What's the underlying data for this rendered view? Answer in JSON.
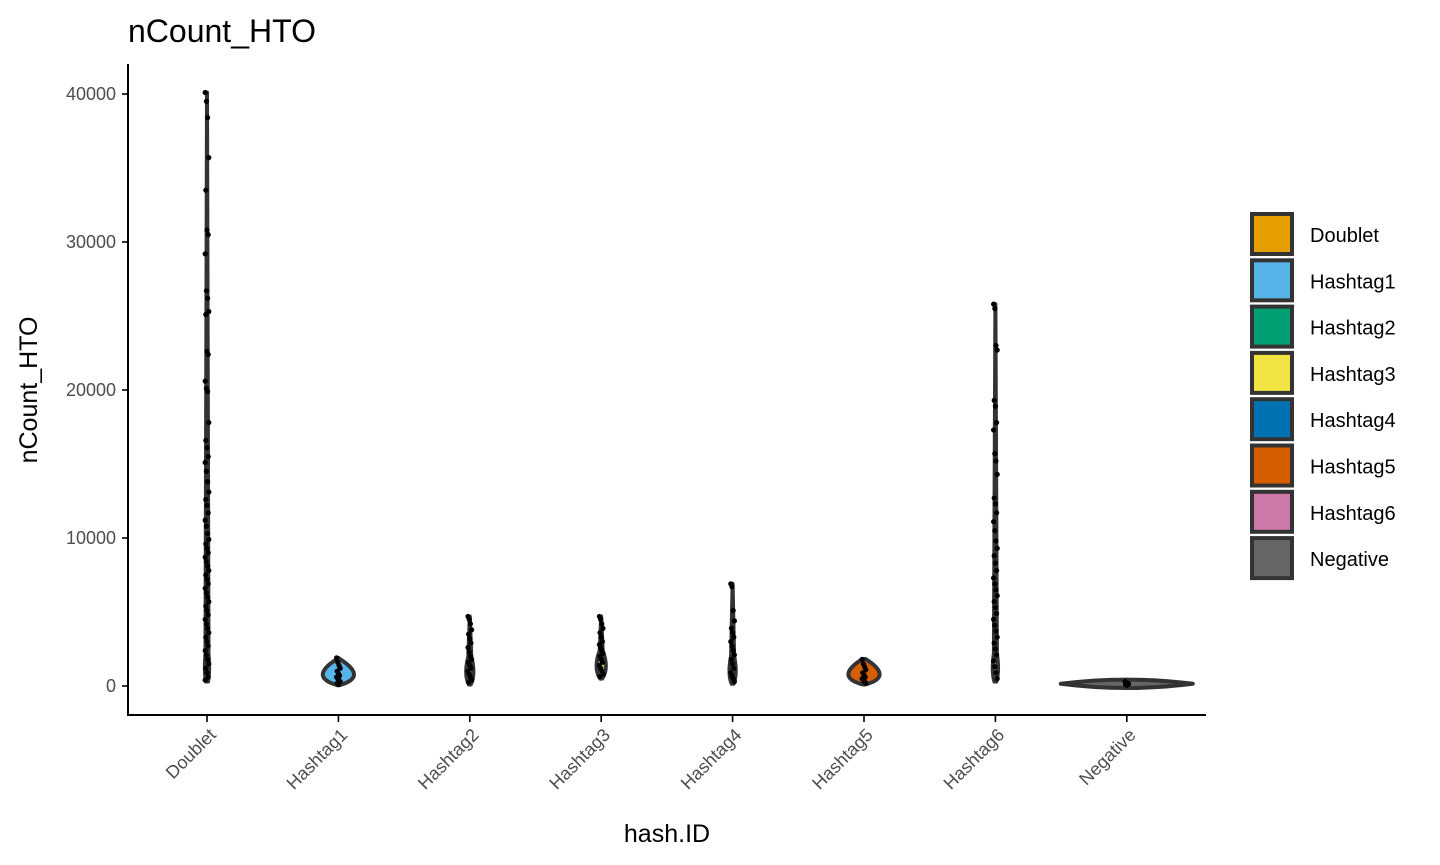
{
  "chart_data": {
    "type": "violin",
    "title": "nCount_HTO",
    "xlabel": "hash.ID",
    "ylabel": "nCount_HTO",
    "ylim": [
      -2000,
      42000
    ],
    "yticks": [
      0,
      10000,
      20000,
      30000,
      40000
    ],
    "categories": [
      "Doublet",
      "Hashtag1",
      "Hashtag2",
      "Hashtag3",
      "Hashtag4",
      "Hashtag5",
      "Hashtag6",
      "Negative"
    ],
    "colors": [
      "#E69F00",
      "#56B4E9",
      "#009E73",
      "#F0E442",
      "#0072B2",
      "#D55E00",
      "#CC79A7",
      "#666666"
    ],
    "legend_position": "right",
    "series": [
      {
        "category": "Doublet",
        "min": 300,
        "max": 40100,
        "points": [
          40100,
          39500,
          38400,
          35700,
          33500,
          30800,
          30500,
          29200,
          26700,
          26200,
          25300,
          25100,
          22600,
          22400,
          20600,
          20100,
          19900,
          17800,
          16600,
          16100,
          15500,
          15100,
          14500,
          13800,
          13100,
          12600,
          12200,
          11700,
          11200,
          10800,
          10300,
          9900,
          9600,
          9300,
          9000,
          8700,
          8400,
          8100,
          7800,
          7500,
          7200,
          6900,
          6600,
          6300,
          6000,
          5700,
          5400,
          5100,
          4800,
          4500,
          4200,
          3900,
          3600,
          3300,
          3000,
          2700,
          2400,
          2100,
          1800,
          1500,
          1200,
          900,
          600,
          400
        ]
      },
      {
        "category": "Hashtag1",
        "min": 50,
        "max": 1900,
        "points": [
          1900,
          1600,
          1400,
          1200,
          1000,
          850,
          700,
          600,
          500,
          400,
          300,
          200,
          100
        ]
      },
      {
        "category": "Hashtag2",
        "min": 100,
        "max": 4700,
        "points": [
          4700,
          4500,
          4200,
          3800,
          3500,
          3200,
          2900,
          2600,
          2300,
          2000,
          1800,
          1600,
          1400,
          1200,
          1000,
          800,
          600,
          400,
          250
        ]
      },
      {
        "category": "Hashtag3",
        "min": 500,
        "max": 4700,
        "points": [
          4700,
          4500,
          4200,
          3900,
          3600,
          3300,
          3000,
          2800,
          2600,
          2400,
          2200,
          2000,
          1800,
          1600,
          1400,
          1200,
          1000,
          800,
          650
        ]
      },
      {
        "category": "Hashtag4",
        "min": 150,
        "max": 6900,
        "points": [
          6900,
          6700,
          5100,
          4400,
          3900,
          3600,
          3300,
          3000,
          2700,
          2400,
          2100,
          1800,
          1500,
          1200,
          900,
          700,
          500,
          300
        ]
      },
      {
        "category": "Hashtag5",
        "min": 100,
        "max": 1800,
        "points": [
          1800,
          1500,
          1300,
          1100,
          900,
          750,
          600,
          500,
          400,
          300,
          200
        ]
      },
      {
        "category": "Hashtag6",
        "min": 300,
        "max": 25800,
        "points": [
          25800,
          25500,
          23000,
          22700,
          19300,
          18900,
          17800,
          17300,
          15700,
          15200,
          14300,
          12700,
          12300,
          11700,
          11100,
          10500,
          9800,
          9300,
          8800,
          8300,
          7800,
          7300,
          6900,
          6500,
          6100,
          5700,
          5300,
          4900,
          4500,
          4100,
          3700,
          3300,
          2900,
          2500,
          2100,
          1700,
          1300,
          900,
          500
        ]
      },
      {
        "category": "Negative",
        "min": 0,
        "max": 300,
        "points": [
          300,
          250,
          200,
          150,
          100,
          50
        ]
      }
    ]
  }
}
